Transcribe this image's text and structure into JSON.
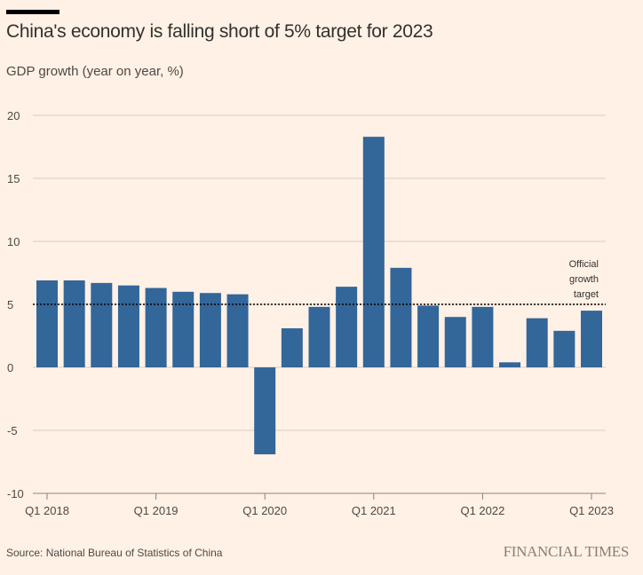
{
  "chart_data": {
    "type": "bar",
    "title": "China's economy is falling short of 5% target for 2023",
    "subtitle": "GDP growth (year on year, %)",
    "xlabel": "",
    "ylabel": "GDP growth (year on year, %)",
    "ylim": [
      -10,
      20
    ],
    "yticks": [
      20,
      15,
      10,
      5,
      0,
      -5,
      -10
    ],
    "ytick_labels": [
      "20",
      "15",
      "10",
      "5",
      "0",
      "-5",
      "-10"
    ],
    "grid": true,
    "categories": [
      "Q1 2018",
      "Q2 2018",
      "Q3 2018",
      "Q4 2018",
      "Q1 2019",
      "Q2 2019",
      "Q3 2019",
      "Q4 2019",
      "Q1 2020",
      "Q2 2020",
      "Q3 2020",
      "Q4 2020",
      "Q1 2021",
      "Q2 2021",
      "Q3 2021",
      "Q4 2021",
      "Q1 2022",
      "Q2 2022",
      "Q3 2022",
      "Q4 2022",
      "Q1 2023"
    ],
    "values": [
      6.9,
      6.9,
      6.7,
      6.5,
      6.3,
      6.0,
      5.9,
      5.8,
      -6.9,
      3.1,
      4.8,
      6.4,
      18.3,
      7.9,
      4.9,
      4.0,
      4.8,
      0.4,
      3.9,
      2.9,
      4.5
    ],
    "xtick_labels": [
      "Q1 2018",
      "Q1 2019",
      "Q1 2020",
      "Q1 2021",
      "Q1 2022",
      "Q1 2023"
    ],
    "xtick_indices": [
      0,
      4,
      8,
      12,
      16,
      20
    ],
    "reference_line": {
      "value": 5,
      "style": "dotted",
      "label": [
        "Official",
        "growth",
        "target"
      ]
    },
    "colors": {
      "bar": "#336699",
      "background": "#fff1e5",
      "grid": "#d9ccc1"
    }
  },
  "footer": {
    "source": "Source: National Bureau of Statistics of China",
    "brand": "FINANCIAL TIMES"
  }
}
